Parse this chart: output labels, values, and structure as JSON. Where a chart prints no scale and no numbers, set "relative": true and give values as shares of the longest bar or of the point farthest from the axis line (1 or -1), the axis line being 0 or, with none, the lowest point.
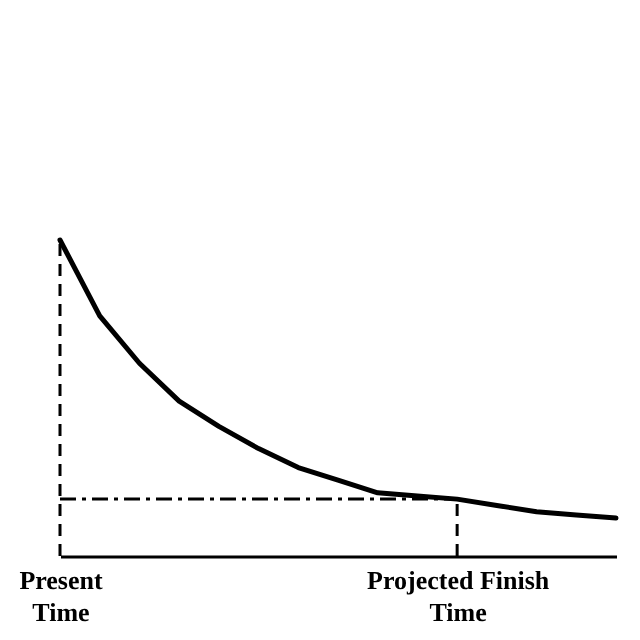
{
  "chart_data": {
    "type": "line",
    "relative": true,
    "categories": [
      "Present Time",
      null,
      null,
      null,
      null,
      null,
      null,
      null,
      null,
      null,
      "Projected Finish Time",
      null,
      null,
      null,
      null
    ],
    "series": [
      {
        "color": "#000000",
        "values": [
          1,
          0.76,
          0.61,
          0.49,
          0.41,
          0.34,
          0.28,
          0.24,
          0.2,
          0.19,
          0.18,
          0.16,
          0.14,
          0.13,
          0.12
        ]
      }
    ],
    "ref_lines": [
      {
        "axis": "x",
        "value": "Present Time",
        "line_style": "dashed",
        "color": "#000000"
      },
      {
        "axis": "x",
        "value": "Projected Finish Time",
        "line_style": "dashed",
        "color": "#000000"
      },
      {
        "axis": "y",
        "value": 0.18,
        "line_style": "dashed",
        "color": "#000000"
      }
    ],
    "grid": false,
    "marker": "none",
    "line_style": "solid"
  }
}
